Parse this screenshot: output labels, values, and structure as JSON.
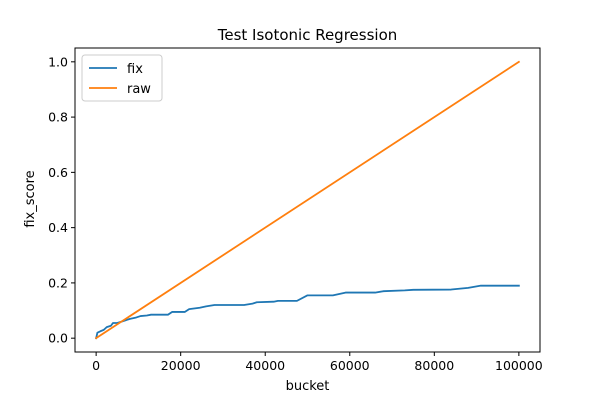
{
  "chart_data": {
    "type": "line",
    "title": "Test Isotonic Regression",
    "xlabel": "bucket",
    "ylabel": "fix_score",
    "xlim": [
      -5000,
      105000
    ],
    "ylim": [
      -0.05,
      1.05
    ],
    "x_ticks": [
      0,
      20000,
      40000,
      60000,
      80000,
      100000
    ],
    "x_tick_labels": [
      "0",
      "20000",
      "40000",
      "60000",
      "80000",
      "100000"
    ],
    "y_ticks": [
      0.0,
      0.2,
      0.4,
      0.6,
      0.8,
      1.0
    ],
    "y_tick_labels": [
      "0.0",
      "0.2",
      "0.4",
      "0.6",
      "0.8",
      "1.0"
    ],
    "grid": false,
    "legend_position": "top-left",
    "series": [
      {
        "name": "fix",
        "color": "#1f77b4",
        "points": [
          [
            0,
            0.0
          ],
          [
            300,
            0.02
          ],
          [
            1000,
            0.025
          ],
          [
            1800,
            0.03
          ],
          [
            2500,
            0.04
          ],
          [
            3500,
            0.045
          ],
          [
            4000,
            0.055
          ],
          [
            5000,
            0.055
          ],
          [
            6000,
            0.06
          ],
          [
            7000,
            0.065
          ],
          [
            8000,
            0.07
          ],
          [
            9500,
            0.075
          ],
          [
            10500,
            0.08
          ],
          [
            12000,
            0.082
          ],
          [
            13000,
            0.085
          ],
          [
            17000,
            0.085
          ],
          [
            18000,
            0.095
          ],
          [
            21000,
            0.095
          ],
          [
            22000,
            0.105
          ],
          [
            24500,
            0.11
          ],
          [
            26000,
            0.115
          ],
          [
            28000,
            0.12
          ],
          [
            35000,
            0.12
          ],
          [
            37000,
            0.125
          ],
          [
            38000,
            0.13
          ],
          [
            42000,
            0.132
          ],
          [
            43000,
            0.135
          ],
          [
            47500,
            0.135
          ],
          [
            50000,
            0.155
          ],
          [
            56000,
            0.155
          ],
          [
            57500,
            0.16
          ],
          [
            59000,
            0.165
          ],
          [
            66000,
            0.165
          ],
          [
            68000,
            0.17
          ],
          [
            73000,
            0.173
          ],
          [
            75000,
            0.175
          ],
          [
            84000,
            0.176
          ],
          [
            88000,
            0.182
          ],
          [
            91000,
            0.19
          ],
          [
            100000,
            0.19
          ]
        ]
      },
      {
        "name": "raw",
        "color": "#ff7f0e",
        "points": [
          [
            0,
            0.0
          ],
          [
            100000,
            1.0
          ]
        ]
      }
    ]
  }
}
